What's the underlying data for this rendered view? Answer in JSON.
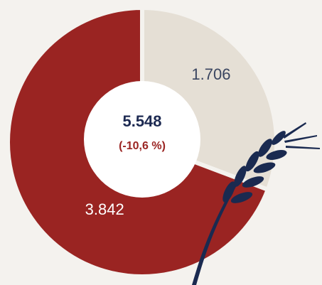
{
  "chart_data": {
    "type": "donut",
    "categories": [
      null,
      null
    ],
    "values": [
      1706,
      3842
    ],
    "value_labels": [
      "1.706",
      "3.842"
    ],
    "colors": [
      "#e5dfd5",
      "#9a2422"
    ],
    "label_colors": [
      "#3a4560",
      "#ffffff"
    ],
    "center_label": "5.548",
    "center_change": "(-10,6 %)"
  }
}
